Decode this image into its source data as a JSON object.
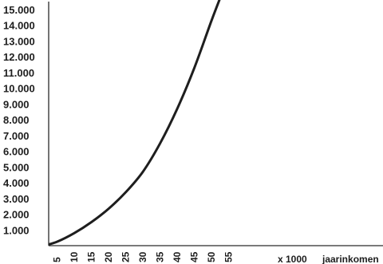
{
  "chart_data": {
    "type": "line",
    "title": "",
    "xlabel": "jaarinkomen",
    "x_unit_note": "x 1000",
    "ylabel": "",
    "x_ticks": [
      "5",
      "10",
      "15",
      "20",
      "25",
      "30",
      "35",
      "40",
      "45",
      "50",
      "55"
    ],
    "y_ticks": [
      "1.000",
      "2.000",
      "3.000",
      "4.000",
      "5.000",
      "6.000",
      "7.000",
      "8.000",
      "9.000",
      "10.000",
      "11.000",
      "12.000",
      "13.000",
      "14.000",
      "15.000"
    ],
    "xlim": [
      2.5,
      100
    ],
    "ylim": [
      0,
      15500
    ],
    "grid": false,
    "legend": "none",
    "series": [
      {
        "x": [
          2,
          5,
          10,
          15,
          20,
          25,
          30,
          35,
          40,
          45,
          50,
          53
        ],
        "y": [
          50,
          250,
          800,
          1500,
          2350,
          3400,
          4700,
          6500,
          8700,
          11300,
          14300,
          16000
        ]
      }
    ]
  },
  "colors": {
    "line": "#1e1e1e",
    "axis": "#2a2a2a",
    "text": "#1e1e1e",
    "background": "#ffffff"
  }
}
